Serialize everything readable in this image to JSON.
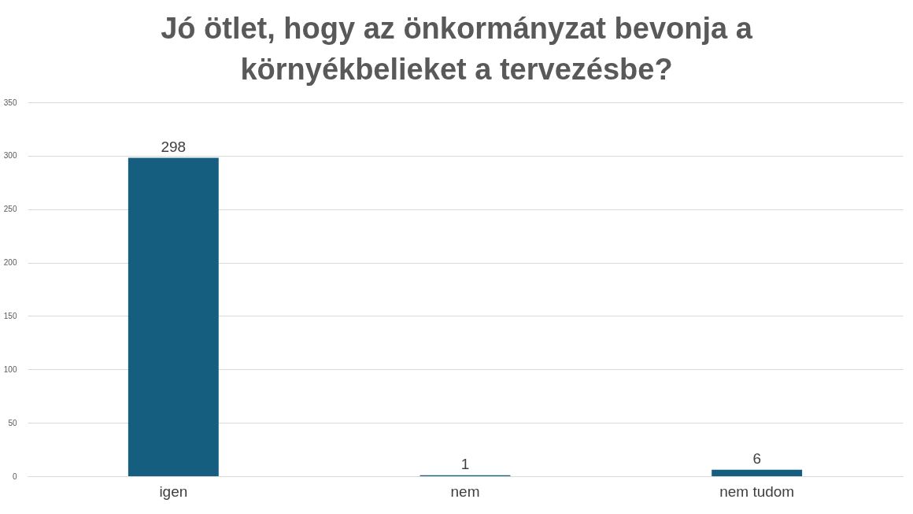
{
  "chart_data": {
    "type": "bar",
    "title": "Jó ötlet, hogy az önkormányzat bevonja a környékbelieket a tervezésbe?",
    "categories": [
      "igen",
      "nem",
      "nem tudom"
    ],
    "values": [
      298,
      1,
      6
    ],
    "color": "#155e80",
    "ylim": [
      0,
      350
    ],
    "yticks": [
      0,
      50,
      100,
      150,
      200,
      250,
      300,
      350
    ],
    "grid": "y",
    "data_labels": true
  }
}
